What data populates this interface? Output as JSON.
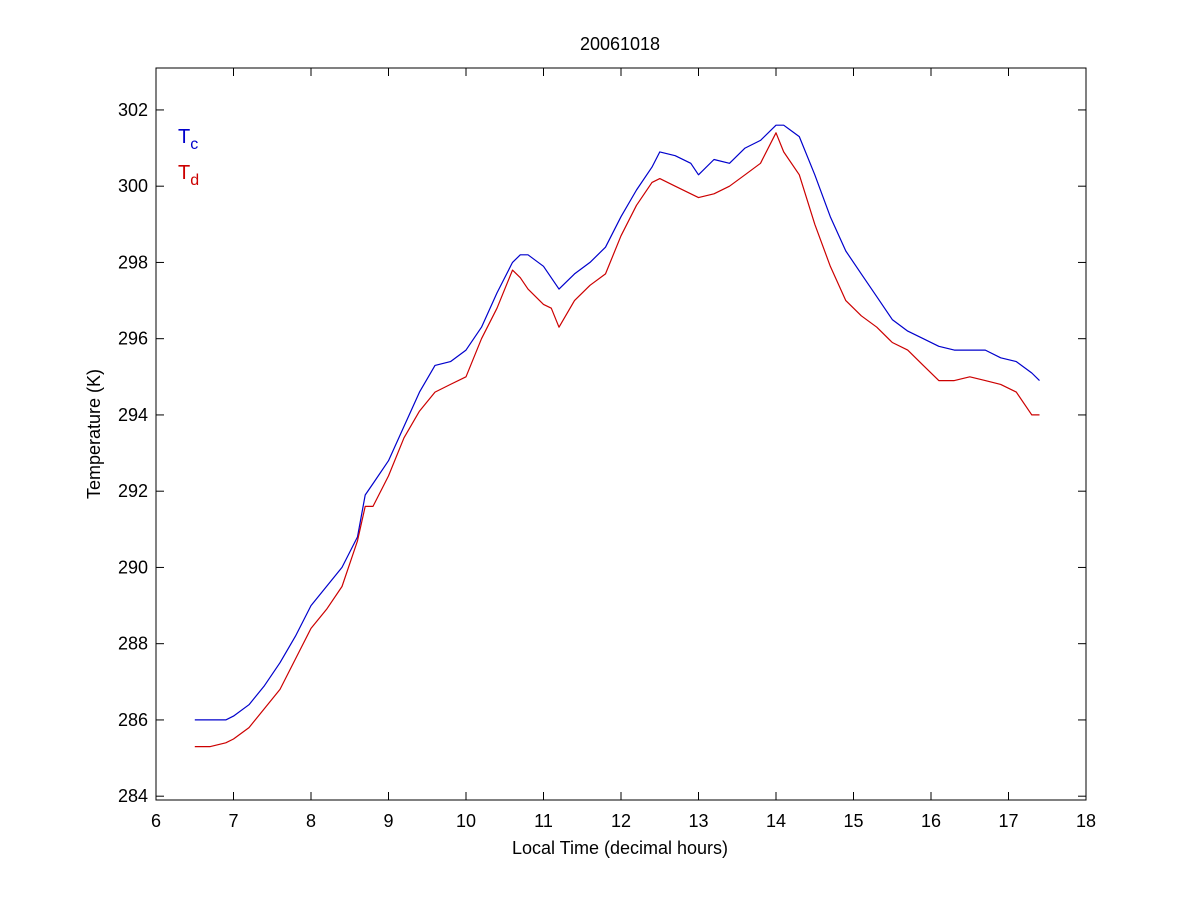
{
  "chart_data": {
    "type": "line",
    "title": "20061018",
    "xlabel": "Local Time (decimal hours)",
    "ylabel": "Temperature (K)",
    "xlim": [
      6,
      18
    ],
    "ylim": [
      283.9,
      303.1
    ],
    "xticks": [
      6,
      7,
      8,
      9,
      10,
      11,
      12,
      13,
      14,
      15,
      16,
      17,
      18
    ],
    "yticks": [
      284,
      286,
      288,
      290,
      292,
      294,
      296,
      298,
      300,
      302
    ],
    "grid": false,
    "legend_position": "top-left",
    "series": [
      {
        "name": "T",
        "subscript": "c",
        "color": "#0000cc",
        "x": [
          6.5,
          6.7,
          6.9,
          7.0,
          7.2,
          7.4,
          7.6,
          7.8,
          8.0,
          8.2,
          8.4,
          8.6,
          8.7,
          8.8,
          9.0,
          9.2,
          9.4,
          9.6,
          9.8,
          10.0,
          10.2,
          10.4,
          10.6,
          10.7,
          10.8,
          11.0,
          11.2,
          11.4,
          11.6,
          11.8,
          12.0,
          12.2,
          12.4,
          12.5,
          12.7,
          12.9,
          13.0,
          13.2,
          13.4,
          13.6,
          13.8,
          14.0,
          14.1,
          14.3,
          14.5,
          14.7,
          14.9,
          15.1,
          15.3,
          15.5,
          15.7,
          15.9,
          16.1,
          16.3,
          16.5,
          16.7,
          16.9,
          17.1,
          17.3,
          17.4
        ],
        "y": [
          286.0,
          286.0,
          286.0,
          286.1,
          286.4,
          286.9,
          287.5,
          288.2,
          289.0,
          289.5,
          290.0,
          290.8,
          291.9,
          292.2,
          292.8,
          293.7,
          294.6,
          295.3,
          295.4,
          295.7,
          296.3,
          297.2,
          298.0,
          298.2,
          298.2,
          297.9,
          297.3,
          297.7,
          298.0,
          298.4,
          299.2,
          299.9,
          300.5,
          300.9,
          300.8,
          300.6,
          300.3,
          300.7,
          300.6,
          301.0,
          301.2,
          301.6,
          301.6,
          301.3,
          300.3,
          299.2,
          298.3,
          297.7,
          297.1,
          296.5,
          296.2,
          296.0,
          295.8,
          295.7,
          295.7,
          295.7,
          295.5,
          295.4,
          295.1,
          294.9
        ]
      },
      {
        "name": "T",
        "subscript": "d",
        "color": "#cc0000",
        "x": [
          6.5,
          6.7,
          6.9,
          7.0,
          7.2,
          7.4,
          7.6,
          7.8,
          8.0,
          8.2,
          8.4,
          8.6,
          8.7,
          8.8,
          9.0,
          9.2,
          9.4,
          9.6,
          9.8,
          10.0,
          10.2,
          10.4,
          10.6,
          10.7,
          10.8,
          11.0,
          11.1,
          11.2,
          11.4,
          11.6,
          11.8,
          12.0,
          12.2,
          12.4,
          12.5,
          12.7,
          12.9,
          13.0,
          13.2,
          13.4,
          13.6,
          13.8,
          14.0,
          14.1,
          14.3,
          14.5,
          14.7,
          14.9,
          15.1,
          15.3,
          15.5,
          15.7,
          15.9,
          16.1,
          16.3,
          16.5,
          16.7,
          16.9,
          17.1,
          17.3,
          17.4
        ],
        "y": [
          285.3,
          285.3,
          285.4,
          285.5,
          285.8,
          286.3,
          286.8,
          287.6,
          288.4,
          288.9,
          289.5,
          290.7,
          291.6,
          291.6,
          292.4,
          293.4,
          294.1,
          294.6,
          294.8,
          295.0,
          296.0,
          296.8,
          297.8,
          297.6,
          297.3,
          296.9,
          296.8,
          296.3,
          297.0,
          297.4,
          297.7,
          298.7,
          299.5,
          300.1,
          300.2,
          300.0,
          299.8,
          299.7,
          299.8,
          300.0,
          300.3,
          300.6,
          301.4,
          300.9,
          300.3,
          299.0,
          297.9,
          297.0,
          296.6,
          296.3,
          295.9,
          295.7,
          295.3,
          294.9,
          294.9,
          295.0,
          294.9,
          294.8,
          294.6,
          294.0,
          294.0
        ]
      }
    ]
  }
}
